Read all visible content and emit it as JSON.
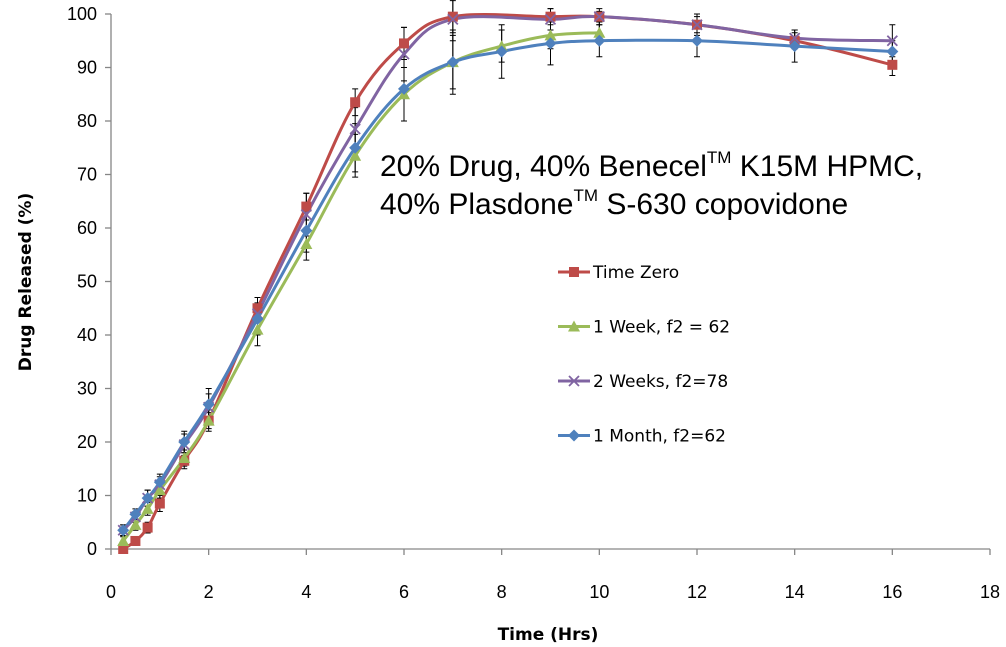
{
  "chart_data": {
    "type": "line",
    "title": "",
    "xlabel": "Time (Hrs)",
    "ylabel": "Drug Released (%)",
    "xlim": [
      0,
      18
    ],
    "ylim": [
      0,
      100
    ],
    "xticks": [
      0,
      2,
      4,
      6,
      8,
      10,
      12,
      14,
      16,
      18
    ],
    "yticks": [
      0,
      10,
      20,
      30,
      40,
      50,
      60,
      70,
      80,
      90,
      100
    ],
    "grid": false,
    "legend_position": "right",
    "annotation": {
      "line1_a": "20% Drug, 40% Benecel",
      "line1_sup": "TM",
      "line1_b": " K15M HPMC,",
      "line2_a": "40% Plasdone",
      "line2_sup": "TM",
      "line2_b": " S-630 copovidone"
    },
    "series": [
      {
        "name": "Time Zero",
        "color": "#BE4B48",
        "marker": "square",
        "x": [
          0.25,
          0.5,
          0.75,
          1,
          1.5,
          2,
          3,
          4,
          5,
          6,
          7,
          9,
          10,
          12,
          14,
          16
        ],
        "y": [
          0,
          1.5,
          4,
          8.5,
          16.5,
          24,
          45,
          64,
          83.5,
          94.5,
          99.5,
          99.5,
          99.5,
          98,
          95,
          90.5
        ],
        "err": [
          0.5,
          0.8,
          1,
          1.5,
          1.5,
          1.5,
          2,
          2.5,
          2.5,
          3,
          3,
          1.5,
          1,
          1.5,
          1.5,
          2
        ]
      },
      {
        "name": "1 Week, f2 = 62",
        "color": "#9BBB59",
        "marker": "triangle",
        "x": [
          0.25,
          0.5,
          0.75,
          1,
          1.5,
          2,
          3,
          4,
          5,
          6,
          7,
          8,
          9,
          10
        ],
        "y": [
          1.5,
          4.5,
          7.5,
          11,
          17,
          24,
          41,
          57,
          73.5,
          85,
          91,
          94,
          96,
          96.5
        ],
        "err": [
          0.8,
          1,
          1.2,
          1.5,
          1.5,
          2,
          3,
          3,
          4,
          5,
          5,
          3,
          2.5,
          2
        ]
      },
      {
        "name": "2 Weeks, f2=78",
        "color": "#8064A2",
        "marker": "x",
        "x": [
          0.25,
          0.5,
          0.75,
          1,
          1.5,
          2,
          3,
          4,
          5,
          6,
          7,
          9,
          10,
          12,
          14,
          16
        ],
        "y": [
          3.5,
          6,
          9.5,
          12,
          19.5,
          26.5,
          44,
          62.5,
          78.5,
          92.5,
          99,
          99,
          99.5,
          98,
          95.5,
          95
        ],
        "err": [
          1,
          1,
          1.5,
          1.5,
          2,
          2.5,
          3,
          4,
          4,
          5,
          4,
          2,
          1.5,
          2,
          1.5,
          3
        ]
      },
      {
        "name": "1 Month, f2=62",
        "color": "#4F81BD",
        "marker": "diamond",
        "x": [
          0.25,
          0.5,
          0.75,
          1,
          1.5,
          2,
          3,
          4,
          5,
          6,
          7,
          8,
          9,
          10,
          12,
          14,
          16
        ],
        "y": [
          3.5,
          6.5,
          9.5,
          12.5,
          20,
          27,
          43,
          59.5,
          75,
          86,
          91,
          93,
          94.5,
          95,
          95,
          94,
          93
        ],
        "err": [
          1,
          1,
          1.5,
          1.5,
          2,
          3,
          3,
          4,
          4.5,
          6,
          6,
          5,
          4,
          3,
          3,
          3,
          2
        ]
      }
    ]
  }
}
